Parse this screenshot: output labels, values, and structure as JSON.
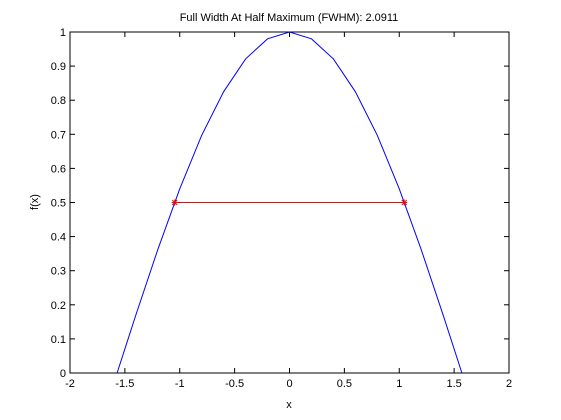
{
  "chart_data": {
    "type": "line",
    "title": "Full Width At Half Maximum (FWHM): 2.0911",
    "xlabel": "x",
    "ylabel": "f(x)",
    "xlim": [
      -2,
      2
    ],
    "ylim": [
      0,
      1
    ],
    "xticks": [
      -2,
      -1.5,
      -1,
      -0.5,
      0,
      0.5,
      1,
      1.5,
      2
    ],
    "xtick_labels": [
      "-2",
      "-1.5",
      "-1",
      "-0.5",
      "0",
      "0.5",
      "1",
      "1.5",
      "2"
    ],
    "yticks": [
      0,
      0.1,
      0.2,
      0.3,
      0.4,
      0.5,
      0.6,
      0.7,
      0.8,
      0.9,
      1
    ],
    "ytick_labels": [
      "0",
      "0.1",
      "0.2",
      "0.3",
      "0.4",
      "0.5",
      "0.6",
      "0.7",
      "0.8",
      "0.9",
      "1"
    ],
    "grid": false,
    "series": [
      {
        "color": "#0000ff",
        "x": [
          -1.5708,
          -1.4,
          -1.2,
          -1.0,
          -0.8,
          -0.6,
          -0.4,
          -0.2,
          0,
          0.2,
          0.4,
          0.6,
          0.8,
          1.0,
          1.2,
          1.4,
          1.5708
        ],
        "y": [
          0,
          0.17,
          0.362,
          0.54,
          0.697,
          0.825,
          0.921,
          0.98,
          1.0,
          0.98,
          0.921,
          0.825,
          0.697,
          0.54,
          0.362,
          0.17,
          0
        ]
      },
      {
        "color": "#ff0000",
        "marker": "*",
        "x": [
          -1.0456,
          1.0456
        ],
        "y": [
          0.5,
          0.5
        ]
      }
    ]
  }
}
